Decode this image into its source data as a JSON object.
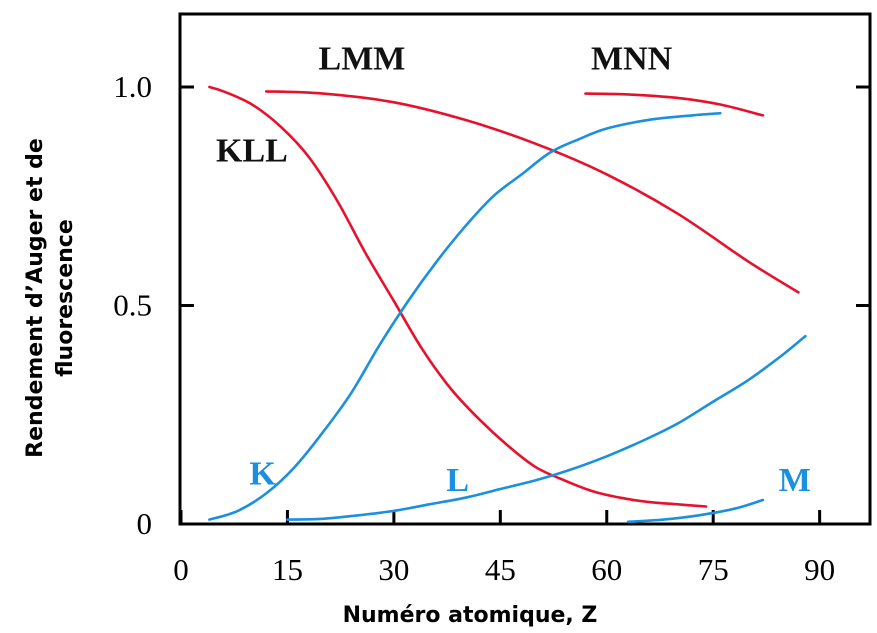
{
  "chart_data": {
    "type": "line",
    "title": "",
    "xlabel": "Numéro atomique, Z",
    "ylabel_lines": [
      "Rendement d’Auger et de",
      "fluorescence"
    ],
    "xlim": [
      0,
      92
    ],
    "ylim": [
      0,
      1.2
    ],
    "x_ticks": [
      0,
      15,
      30,
      45,
      60,
      75,
      90
    ],
    "x_tick_labels": [
      "0",
      "15",
      "30",
      "45",
      "60",
      "75",
      "90"
    ],
    "y_ticks": [
      0,
      0.5,
      1.0
    ],
    "y_tick_labels": [
      "0",
      "0.5",
      "1.0"
    ],
    "grid": false,
    "colors": {
      "auger": "#e8112d",
      "fluorescence": "#1b8fe0"
    },
    "series": [
      {
        "name": "KLL",
        "group": "auger",
        "x": [
          4,
          6,
          10,
          14,
          18,
          22,
          26,
          30,
          34,
          38,
          42,
          46,
          50,
          54,
          58,
          62,
          66,
          70,
          74
        ],
        "y": [
          1.0,
          0.99,
          0.96,
          0.91,
          0.84,
          0.74,
          0.62,
          0.51,
          0.4,
          0.31,
          0.24,
          0.18,
          0.13,
          0.1,
          0.075,
          0.06,
          0.05,
          0.045,
          0.04
        ]
      },
      {
        "name": "LMM",
        "group": "auger",
        "x": [
          12,
          20,
          30,
          40,
          50,
          60,
          70,
          80,
          87
        ],
        "y": [
          0.99,
          0.985,
          0.965,
          0.925,
          0.87,
          0.8,
          0.71,
          0.6,
          0.53
        ]
      },
      {
        "name": "MNN",
        "group": "auger",
        "x": [
          57,
          63,
          70,
          76,
          82
        ],
        "y": [
          0.985,
          0.983,
          0.975,
          0.96,
          0.935
        ]
      },
      {
        "name": "K",
        "group": "fluorescence",
        "x": [
          4,
          8,
          12,
          16,
          20,
          24,
          28,
          32,
          36,
          40,
          44,
          48,
          52,
          56,
          60,
          66,
          72,
          76
        ],
        "y": [
          0.01,
          0.03,
          0.07,
          0.13,
          0.21,
          0.3,
          0.41,
          0.51,
          0.6,
          0.68,
          0.75,
          0.8,
          0.85,
          0.88,
          0.905,
          0.925,
          0.935,
          0.94
        ]
      },
      {
        "name": "L",
        "group": "fluorescence",
        "x": [
          15,
          20,
          25,
          30,
          35,
          40,
          45,
          50,
          55,
          60,
          65,
          70,
          75,
          80,
          85,
          88
        ],
        "y": [
          0.01,
          0.012,
          0.02,
          0.03,
          0.045,
          0.06,
          0.08,
          0.1,
          0.125,
          0.155,
          0.19,
          0.23,
          0.28,
          0.33,
          0.39,
          0.43
        ]
      },
      {
        "name": "M",
        "group": "fluorescence",
        "x": [
          63,
          68,
          73,
          78,
          82
        ],
        "y": [
          0.005,
          0.01,
          0.02,
          0.035,
          0.055
        ]
      }
    ],
    "series_labels": [
      {
        "text": "KLL",
        "x": 10,
        "y": 0.83,
        "group": "auger"
      },
      {
        "text": "LMM",
        "x": 25.5,
        "y": 1.04,
        "group": "auger"
      },
      {
        "text": "MNN",
        "x": 63.5,
        "y": 1.04,
        "group": "auger"
      },
      {
        "text": "K",
        "x": 11.5,
        "y": 0.09,
        "group": "fluorescence"
      },
      {
        "text": "L",
        "x": 39,
        "y": 0.075,
        "group": "fluorescence"
      },
      {
        "text": "M",
        "x": 86.5,
        "y": 0.075,
        "group": "fluorescence"
      }
    ]
  }
}
